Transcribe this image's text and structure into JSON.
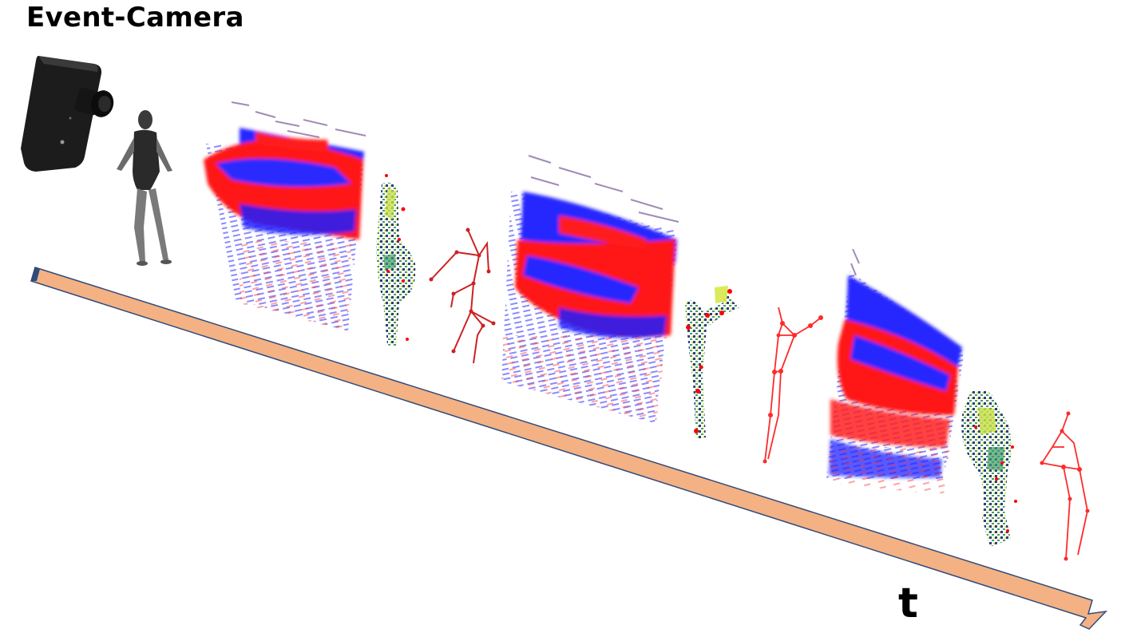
{
  "title": "Event-Camera",
  "time_axis": {
    "label": "t",
    "fill_color": "#f4b183",
    "stroke_color": "#2f4b7c"
  },
  "colors": {
    "positive_events": "#ff1010",
    "negative_events": "#1a1aff",
    "skeleton": "#cc2222",
    "keypoint": "#ff0000",
    "camera_body": "#1c1c1c"
  },
  "stages": [
    {
      "name": "frame-1",
      "items": [
        "event-volume",
        "event-point-cloud",
        "skeleton-3d"
      ]
    },
    {
      "name": "frame-2",
      "items": [
        "event-volume",
        "event-point-cloud",
        "skeleton-3d"
      ]
    },
    {
      "name": "frame-3",
      "items": [
        "event-volume",
        "event-point-cloud",
        "skeleton-3d"
      ]
    }
  ]
}
